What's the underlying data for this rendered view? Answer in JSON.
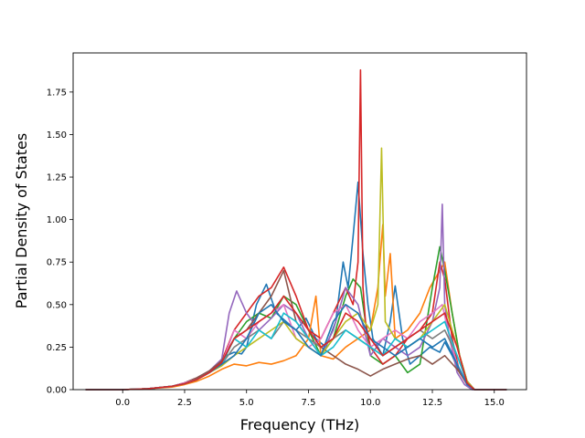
{
  "chart_data": {
    "type": "line",
    "title": "",
    "xlabel": "Frequency (THz)",
    "ylabel": "Partial Density of States",
    "xlim": [
      -2.0,
      16.3
    ],
    "ylim": [
      0.0,
      1.98
    ],
    "xticks": [
      0.0,
      2.5,
      5.0,
      7.5,
      10.0,
      12.5,
      15.0
    ],
    "xtick_labels": [
      "0.0",
      "2.5",
      "5.0",
      "7.5",
      "10.0",
      "12.5",
      "15.0"
    ],
    "yticks": [
      0.0,
      0.25,
      0.5,
      0.75,
      1.0,
      1.25,
      1.5,
      1.75
    ],
    "ytick_labels": [
      "0.00",
      "0.25",
      "0.50",
      "0.75",
      "1.00",
      "1.25",
      "1.50",
      "1.75"
    ],
    "grid": false,
    "legend": "none",
    "series": [
      {
        "color": "#1f77b4",
        "x": [
          -1.5,
          0,
          1,
          2,
          2.5,
          3,
          3.5,
          4,
          4.2,
          4.5,
          4.8,
          5.0,
          5.4,
          5.8,
          6.2,
          6.6,
          7.0,
          7.4,
          7.8,
          8.2,
          8.6,
          8.9,
          9.1,
          9.3,
          9.5,
          9.7,
          9.9,
          10.1,
          10.5,
          10.8,
          11.0,
          11.3,
          11.6,
          12.0,
          12.4,
          12.8,
          13.0,
          13.3,
          13.6,
          13.9,
          14.2,
          15.5
        ],
        "y": [
          0,
          0,
          0.005,
          0.02,
          0.035,
          0.06,
          0.1,
          0.16,
          0.2,
          0.22,
          0.21,
          0.25,
          0.5,
          0.62,
          0.45,
          0.4,
          0.35,
          0.42,
          0.3,
          0.25,
          0.4,
          0.75,
          0.6,
          0.9,
          1.22,
          0.8,
          0.5,
          0.3,
          0.2,
          0.4,
          0.61,
          0.3,
          0.15,
          0.2,
          0.25,
          0.22,
          0.28,
          0.2,
          0.1,
          0.05,
          0,
          0
        ]
      },
      {
        "color": "#ff7f0e",
        "x": [
          -1.5,
          0,
          1,
          2,
          2.5,
          3,
          3.5,
          4,
          4.5,
          5.0,
          5.5,
          6.0,
          6.5,
          7.0,
          7.5,
          7.8,
          8.0,
          8.5,
          9.0,
          9.5,
          10.0,
          10.3,
          10.5,
          10.6,
          10.8,
          11.0,
          11.5,
          12.0,
          12.4,
          12.8,
          13.0,
          13.3,
          13.6,
          13.9,
          14.2,
          15.5
        ],
        "y": [
          0,
          0,
          0.005,
          0.015,
          0.03,
          0.05,
          0.08,
          0.12,
          0.15,
          0.14,
          0.16,
          0.15,
          0.17,
          0.2,
          0.3,
          0.55,
          0.2,
          0.18,
          0.25,
          0.3,
          0.35,
          0.6,
          0.97,
          0.55,
          0.8,
          0.3,
          0.35,
          0.45,
          0.6,
          0.7,
          0.75,
          0.45,
          0.2,
          0.05,
          0,
          0
        ]
      },
      {
        "color": "#2ca02c",
        "x": [
          -1.5,
          0,
          1,
          2,
          2.5,
          3,
          3.5,
          4,
          4.5,
          5.0,
          5.5,
          6.0,
          6.5,
          7.0,
          7.5,
          8.0,
          8.5,
          9.0,
          9.3,
          9.6,
          10.0,
          10.5,
          11.0,
          11.5,
          12.0,
          12.5,
          12.8,
          13.0,
          13.3,
          13.6,
          13.9,
          14.2,
          15.5
        ],
        "y": [
          0,
          0,
          0.005,
          0.02,
          0.035,
          0.06,
          0.1,
          0.15,
          0.3,
          0.4,
          0.45,
          0.42,
          0.55,
          0.5,
          0.35,
          0.2,
          0.3,
          0.55,
          0.65,
          0.6,
          0.2,
          0.15,
          0.2,
          0.1,
          0.15,
          0.6,
          0.84,
          0.7,
          0.45,
          0.2,
          0.05,
          0,
          0
        ]
      },
      {
        "color": "#d62728",
        "x": [
          -1.5,
          0,
          1,
          2,
          2.5,
          3,
          3.5,
          4,
          4.5,
          5.0,
          5.5,
          6.0,
          6.5,
          7.0,
          7.5,
          8.0,
          8.5,
          9.0,
          9.3,
          9.5,
          9.6,
          9.7,
          9.8,
          10.0,
          10.5,
          11.0,
          11.5,
          12.0,
          12.5,
          12.8,
          13.0,
          13.3,
          13.6,
          13.9,
          14.2,
          15.5
        ],
        "y": [
          0,
          0,
          0.005,
          0.02,
          0.04,
          0.07,
          0.11,
          0.17,
          0.35,
          0.45,
          0.55,
          0.6,
          0.72,
          0.55,
          0.35,
          0.3,
          0.45,
          0.6,
          0.5,
          0.75,
          1.88,
          0.6,
          0.4,
          0.25,
          0.15,
          0.2,
          0.3,
          0.35,
          0.45,
          0.75,
          0.65,
          0.3,
          0.1,
          0.03,
          0,
          0
        ]
      },
      {
        "color": "#9467bd",
        "x": [
          -1.5,
          0,
          1,
          2,
          2.5,
          3,
          3.5,
          4,
          4.3,
          4.6,
          5.0,
          5.5,
          6.0,
          6.5,
          7.0,
          7.5,
          8.0,
          8.5,
          9.0,
          9.5,
          10.0,
          10.5,
          11.0,
          11.5,
          12.0,
          12.5,
          12.8,
          12.9,
          13.0,
          13.2,
          13.5,
          13.8,
          14.1,
          15.5
        ],
        "y": [
          0,
          0,
          0.005,
          0.02,
          0.04,
          0.07,
          0.11,
          0.18,
          0.45,
          0.58,
          0.45,
          0.35,
          0.42,
          0.5,
          0.45,
          0.3,
          0.2,
          0.35,
          0.6,
          0.5,
          0.2,
          0.3,
          0.25,
          0.2,
          0.25,
          0.4,
          0.6,
          1.09,
          0.5,
          0.3,
          0.1,
          0.03,
          0,
          0
        ]
      },
      {
        "color": "#8c564b",
        "x": [
          -1.5,
          0,
          1,
          2,
          2.5,
          3,
          3.5,
          4,
          4.5,
          5.0,
          5.5,
          6.0,
          6.5,
          7.0,
          7.5,
          8.0,
          8.5,
          9.0,
          9.5,
          10.0,
          10.5,
          11.0,
          11.5,
          12.0,
          12.5,
          13.0,
          13.5,
          13.9,
          14.2,
          15.5
        ],
        "y": [
          0,
          0,
          0.005,
          0.02,
          0.04,
          0.07,
          0.11,
          0.17,
          0.3,
          0.35,
          0.45,
          0.55,
          0.7,
          0.4,
          0.3,
          0.25,
          0.2,
          0.15,
          0.12,
          0.08,
          0.12,
          0.15,
          0.18,
          0.2,
          0.15,
          0.2,
          0.12,
          0.04,
          0,
          0
        ]
      },
      {
        "color": "#e377c2",
        "x": [
          -1.5,
          0,
          1,
          2,
          2.5,
          3,
          3.5,
          4,
          4.5,
          5.0,
          5.5,
          6.0,
          6.5,
          7.0,
          7.5,
          8.0,
          8.5,
          9.0,
          9.5,
          10.0,
          10.5,
          11.0,
          11.5,
          12.0,
          12.5,
          12.9,
          13.2,
          13.5,
          13.9,
          14.2,
          15.5
        ],
        "y": [
          0,
          0,
          0.005,
          0.02,
          0.04,
          0.06,
          0.1,
          0.15,
          0.35,
          0.3,
          0.4,
          0.45,
          0.5,
          0.3,
          0.25,
          0.3,
          0.45,
          0.5,
          0.35,
          0.25,
          0.3,
          0.35,
          0.3,
          0.4,
          0.45,
          0.5,
          0.3,
          0.15,
          0.03,
          0,
          0
        ]
      },
      {
        "color": "#7f7f7f",
        "x": [
          -1.5,
          0,
          1,
          2,
          2.5,
          3,
          3.5,
          4,
          4.5,
          5.0,
          5.5,
          6.0,
          6.5,
          7.0,
          7.5,
          8.0,
          8.5,
          9.0,
          9.5,
          10.0,
          10.5,
          11.0,
          11.5,
          12.0,
          12.5,
          13.0,
          13.5,
          13.9,
          14.2,
          15.5
        ],
        "y": [
          0,
          0,
          0.005,
          0.02,
          0.035,
          0.06,
          0.1,
          0.15,
          0.25,
          0.3,
          0.35,
          0.3,
          0.4,
          0.35,
          0.3,
          0.25,
          0.3,
          0.35,
          0.3,
          0.25,
          0.2,
          0.25,
          0.3,
          0.35,
          0.3,
          0.35,
          0.2,
          0.05,
          0,
          0
        ]
      },
      {
        "color": "#bcbd22",
        "x": [
          -1.5,
          0,
          1,
          2,
          2.5,
          3,
          3.5,
          4,
          4.5,
          5.0,
          5.5,
          6.0,
          6.5,
          7.0,
          7.5,
          8.0,
          8.5,
          9.0,
          9.5,
          10.0,
          10.3,
          10.45,
          10.6,
          11.0,
          11.5,
          12.0,
          12.5,
          13.0,
          13.5,
          13.9,
          14.2,
          15.5
        ],
        "y": [
          0,
          0,
          0.005,
          0.02,
          0.035,
          0.06,
          0.1,
          0.14,
          0.2,
          0.25,
          0.3,
          0.35,
          0.4,
          0.3,
          0.25,
          0.2,
          0.3,
          0.4,
          0.45,
          0.35,
          0.5,
          1.42,
          0.4,
          0.3,
          0.25,
          0.3,
          0.4,
          0.5,
          0.25,
          0.05,
          0,
          0
        ]
      },
      {
        "color": "#17becf",
        "x": [
          -1.5,
          0,
          1,
          2,
          2.5,
          3,
          3.5,
          4,
          4.5,
          5.0,
          5.5,
          6.0,
          6.5,
          7.0,
          7.5,
          8.0,
          8.5,
          9.0,
          9.5,
          10.0,
          10.5,
          11.0,
          11.5,
          12.0,
          12.5,
          13.0,
          13.5,
          13.9,
          14.2,
          15.5
        ],
        "y": [
          0,
          0,
          0.005,
          0.02,
          0.035,
          0.06,
          0.1,
          0.15,
          0.3,
          0.25,
          0.35,
          0.3,
          0.45,
          0.4,
          0.3,
          0.2,
          0.25,
          0.35,
          0.3,
          0.25,
          0.2,
          0.3,
          0.25,
          0.3,
          0.35,
          0.4,
          0.2,
          0.04,
          0,
          0
        ]
      },
      {
        "color": "#1f77b4",
        "x": [
          -1.5,
          0,
          1,
          2,
          2.5,
          3,
          3.5,
          4,
          4.5,
          5.0,
          5.5,
          6.0,
          6.5,
          7.0,
          7.5,
          8.0,
          8.5,
          9.0,
          9.5,
          10.0,
          10.5,
          11.0,
          11.5,
          12.0,
          12.5,
          13.0,
          13.5,
          13.9,
          14.2,
          15.5
        ],
        "y": [
          0,
          0,
          0.005,
          0.02,
          0.035,
          0.06,
          0.1,
          0.15,
          0.2,
          0.3,
          0.45,
          0.5,
          0.4,
          0.35,
          0.25,
          0.2,
          0.4,
          0.5,
          0.45,
          0.3,
          0.25,
          0.2,
          0.25,
          0.3,
          0.25,
          0.3,
          0.15,
          0.03,
          0,
          0
        ]
      },
      {
        "color": "#d62728",
        "x": [
          -1.5,
          0,
          1,
          2,
          2.5,
          3,
          3.5,
          4,
          4.5,
          5.0,
          5.5,
          6.0,
          6.5,
          7.0,
          7.5,
          8.0,
          8.5,
          9.0,
          9.5,
          10.0,
          10.5,
          11.0,
          11.5,
          12.0,
          12.5,
          13.0,
          13.5,
          13.9,
          14.2,
          15.5
        ],
        "y": [
          0,
          0,
          0.005,
          0.02,
          0.035,
          0.06,
          0.1,
          0.16,
          0.3,
          0.35,
          0.4,
          0.45,
          0.55,
          0.45,
          0.35,
          0.25,
          0.3,
          0.45,
          0.4,
          0.3,
          0.2,
          0.25,
          0.3,
          0.35,
          0.4,
          0.45,
          0.25,
          0.04,
          0,
          0
        ]
      }
    ]
  }
}
